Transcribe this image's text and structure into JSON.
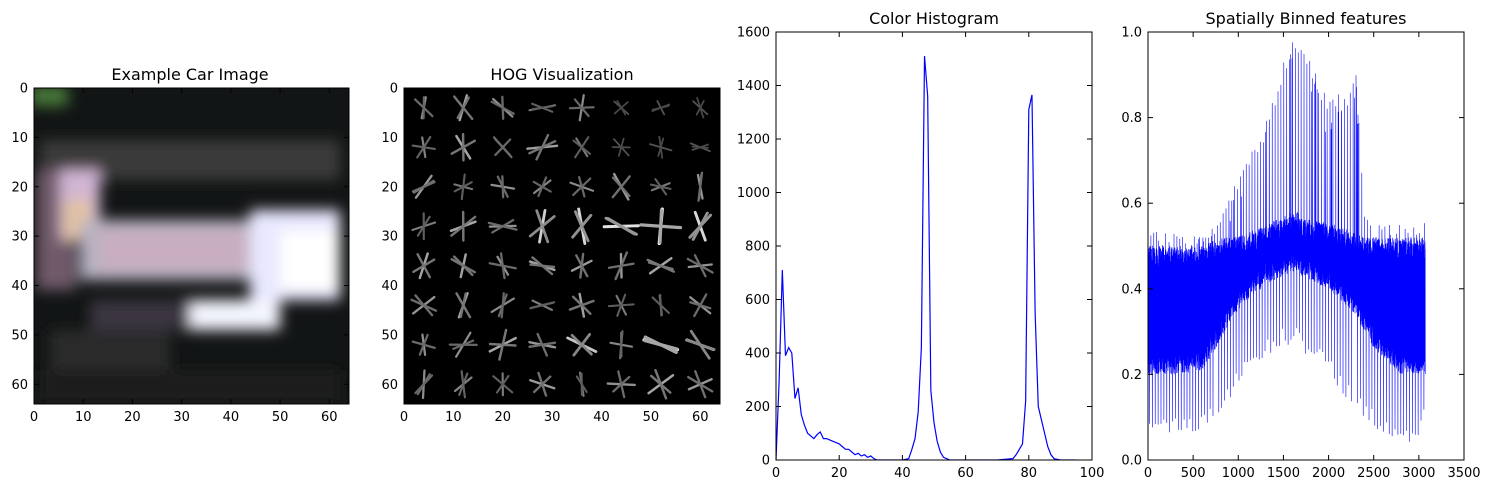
{
  "chart_data": [
    {
      "type": "image",
      "title": "Example Car Image",
      "xlim": [
        0,
        64
      ],
      "ylim": [
        64,
        0
      ],
      "xticks": [
        "0",
        "10",
        "20",
        "30",
        "40",
        "50",
        "60"
      ],
      "yticks": [
        "0",
        "10",
        "20",
        "30",
        "40",
        "50",
        "60"
      ]
    },
    {
      "type": "image",
      "title": "HOG Visualization",
      "xlim": [
        0,
        64
      ],
      "ylim": [
        64,
        0
      ],
      "xticks": [
        "0",
        "10",
        "20",
        "30",
        "40",
        "50",
        "60"
      ],
      "yticks": [
        "0",
        "10",
        "20",
        "30",
        "40",
        "50",
        "60"
      ]
    },
    {
      "type": "line",
      "title": "Color Histogram",
      "xlim": [
        0,
        100
      ],
      "ylim": [
        0,
        1600
      ],
      "xticks": [
        "0",
        "20",
        "40",
        "60",
        "80",
        "100"
      ],
      "yticks": [
        "0",
        "200",
        "400",
        "600",
        "800",
        "1000",
        "1200",
        "1400",
        "1600"
      ],
      "color": "#0000ff",
      "x": [
        0,
        1,
        2,
        3,
        4,
        5,
        6,
        7,
        8,
        9,
        10,
        11,
        12,
        13,
        14,
        15,
        16,
        17,
        18,
        19,
        20,
        21,
        22,
        23,
        24,
        25,
        26,
        27,
        28,
        29,
        30,
        31,
        32,
        33,
        36,
        40,
        42,
        43,
        44,
        45,
        46,
        47,
        48,
        49,
        50,
        51,
        52,
        53,
        55,
        60,
        70,
        75,
        76,
        77,
        78,
        79,
        80,
        81,
        82,
        83,
        84,
        85,
        86,
        87,
        88,
        90,
        95
      ],
      "y": [
        0,
        300,
        710,
        390,
        420,
        400,
        230,
        270,
        170,
        130,
        100,
        90,
        80,
        95,
        105,
        80,
        80,
        75,
        70,
        65,
        60,
        50,
        40,
        40,
        30,
        20,
        25,
        15,
        20,
        10,
        15,
        5,
        0,
        0,
        0,
        0,
        5,
        40,
        80,
        180,
        420,
        1510,
        1360,
        260,
        140,
        70,
        30,
        10,
        0,
        0,
        0,
        5,
        20,
        40,
        60,
        220,
        1310,
        1365,
        550,
        200,
        150,
        100,
        50,
        20,
        5,
        0,
        0
      ]
    },
    {
      "type": "line",
      "title": "Spatially Binned features",
      "xlim": [
        0,
        3500
      ],
      "ylim": [
        0,
        1.0
      ],
      "xticks": [
        "0",
        "500",
        "1000",
        "1500",
        "2000",
        "2500",
        "3000",
        "3500"
      ],
      "yticks": [
        "0.0",
        "0.2",
        "0.4",
        "0.6",
        "0.8",
        "1.0"
      ],
      "color": "#0000ff",
      "n_points": 3072,
      "envelope_x": [
        0,
        200,
        400,
        600,
        700,
        800,
        900,
        1000,
        1100,
        1200,
        1300,
        1400,
        1500,
        1600,
        1650,
        1700,
        1800,
        1900,
        2000,
        2100,
        2200,
        2300,
        2400,
        2500,
        2600,
        2700,
        2800,
        2900,
        3000,
        3072
      ],
      "envelope_max": [
        0.54,
        0.53,
        0.53,
        0.53,
        0.55,
        0.58,
        0.62,
        0.67,
        0.7,
        0.74,
        0.79,
        0.86,
        0.93,
        0.99,
        0.98,
        0.96,
        0.94,
        0.88,
        0.85,
        0.86,
        0.84,
        0.92,
        0.59,
        0.55,
        0.55,
        0.55,
        0.55,
        0.55,
        0.56,
        0.56
      ],
      "envelope_min": [
        0.06,
        0.06,
        0.06,
        0.07,
        0.09,
        0.11,
        0.14,
        0.17,
        0.2,
        0.22,
        0.24,
        0.25,
        0.27,
        0.26,
        0.27,
        0.25,
        0.24,
        0.22,
        0.2,
        0.17,
        0.14,
        0.12,
        0.1,
        0.08,
        0.06,
        0.05,
        0.04,
        0.04,
        0.05,
        0.09
      ],
      "band_low": [
        0.2,
        0.2,
        0.2,
        0.21,
        0.24,
        0.28,
        0.32,
        0.35,
        0.37,
        0.39,
        0.41,
        0.42,
        0.43,
        0.44,
        0.44,
        0.43,
        0.42,
        0.41,
        0.4,
        0.38,
        0.36,
        0.34,
        0.3,
        0.26,
        0.24,
        0.22,
        0.2,
        0.2,
        0.2,
        0.2
      ],
      "band_high": [
        0.5,
        0.5,
        0.5,
        0.5,
        0.51,
        0.52,
        0.52,
        0.53,
        0.53,
        0.54,
        0.55,
        0.56,
        0.57,
        0.58,
        0.58,
        0.57,
        0.56,
        0.56,
        0.55,
        0.55,
        0.54,
        0.53,
        0.52,
        0.52,
        0.52,
        0.52,
        0.52,
        0.52,
        0.52,
        0.52
      ]
    }
  ]
}
